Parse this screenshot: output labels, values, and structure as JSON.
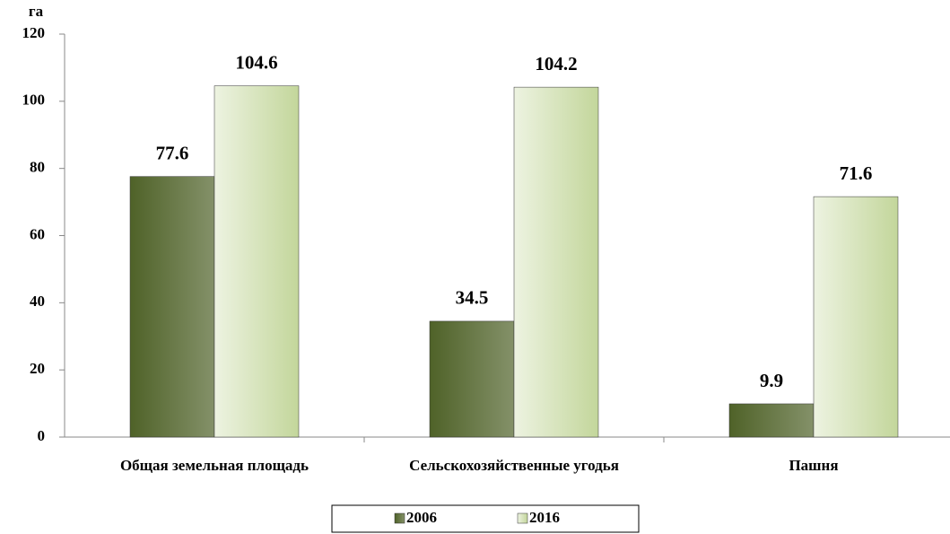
{
  "chart_data": {
    "type": "bar",
    "y_label": "га",
    "categories": [
      "Общая земельная площадь",
      "Сельскохозяйственные угодья",
      "Пашня"
    ],
    "series": [
      {
        "name": "2006",
        "color": "#4f6228",
        "values": [
          77.6,
          34.5,
          9.9
        ]
      },
      {
        "name": "2016",
        "color": "#c3d69b",
        "values": [
          104.6,
          104.2,
          71.6
        ]
      }
    ],
    "ylim": [
      0,
      120
    ],
    "yticks": [
      0,
      20,
      40,
      60,
      80,
      100,
      120
    ],
    "grid": false,
    "legend": "bottom"
  }
}
